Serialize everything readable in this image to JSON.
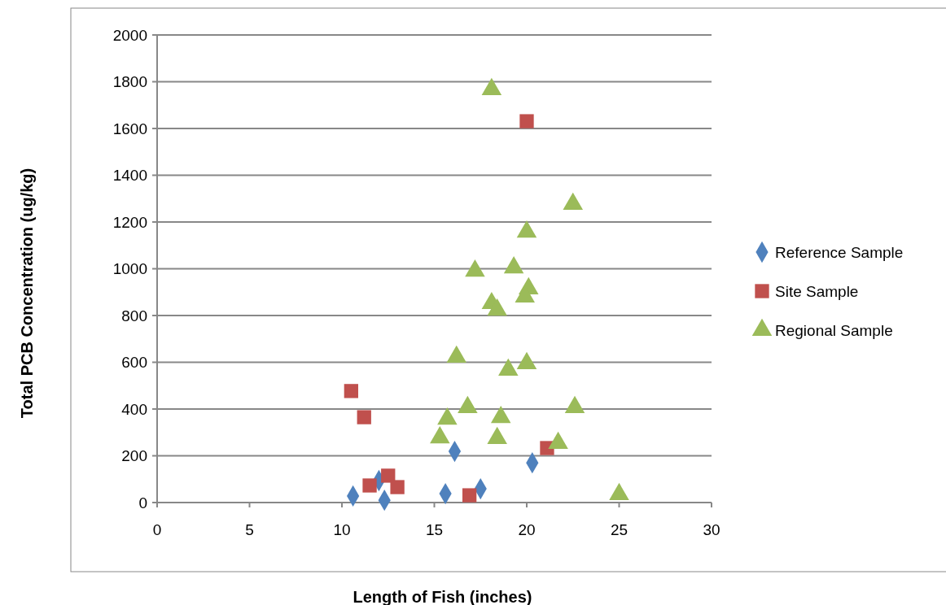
{
  "chart_data": {
    "type": "scatter",
    "xlabel": "Length of Fish (inches)",
    "ylabel": "Total PCB Concentration (ug/kg)",
    "xlim": [
      0,
      30
    ],
    "xticks": [
      0,
      5,
      10,
      15,
      20,
      25,
      30
    ],
    "ylim": [
      0,
      2000
    ],
    "yticks": [
      0,
      200,
      400,
      600,
      800,
      1000,
      1200,
      1400,
      1600,
      1800,
      2000
    ],
    "grid": "y",
    "legend": "right",
    "series": [
      {
        "name": "Reference Sample",
        "color": "#4f81bd",
        "marker": "diamond",
        "x": [
          10.6,
          12.0,
          12.3,
          15.6,
          16.1,
          17.5,
          20.3
        ],
        "values": [
          28,
          94,
          10,
          38,
          219,
          59,
          170
        ]
      },
      {
        "name": "Site Sample",
        "color": "#c0504d",
        "marker": "square",
        "x": [
          10.5,
          11.2,
          11.5,
          12.5,
          13.0,
          16.9,
          21.1,
          20.0
        ],
        "values": [
          477,
          365,
          73,
          115,
          66,
          31,
          233,
          1631
        ]
      },
      {
        "name": "Regional Sample",
        "color": "#9bbb59",
        "marker": "triangle",
        "x": [
          18.1,
          22.5,
          20.0,
          17.2,
          19.3,
          20.1,
          19.9,
          18.1,
          18.4,
          16.2,
          19.0,
          20.0,
          16.8,
          18.6,
          15.7,
          22.6,
          15.3,
          18.4,
          21.7,
          25.0
        ],
        "values": [
          1767,
          1277,
          1158,
          991,
          1005,
          915,
          880,
          852,
          824,
          623,
          567,
          595,
          407,
          365,
          358,
          407,
          278,
          275,
          254,
          35
        ]
      }
    ]
  }
}
